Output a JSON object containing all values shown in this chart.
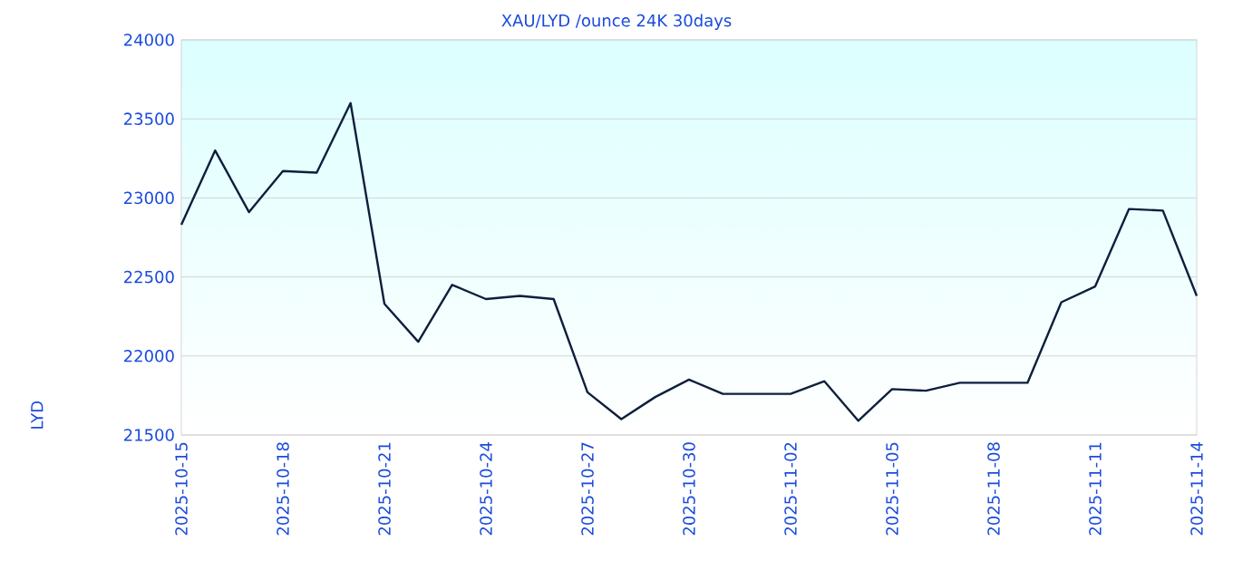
{
  "chart_data": {
    "type": "line",
    "title": "XAU/LYD /ounce 24K 30days",
    "ylabel": "LYD",
    "x": [
      "2025-10-15",
      "2025-10-16",
      "2025-10-17",
      "2025-10-18",
      "2025-10-19",
      "2025-10-20",
      "2025-10-21",
      "2025-10-22",
      "2025-10-23",
      "2025-10-24",
      "2025-10-25",
      "2025-10-26",
      "2025-10-27",
      "2025-10-28",
      "2025-10-29",
      "2025-10-30",
      "2025-10-31",
      "2025-11-01",
      "2025-11-02",
      "2025-11-03",
      "2025-11-04",
      "2025-11-05",
      "2025-11-06",
      "2025-11-07",
      "2025-11-08",
      "2025-11-09",
      "2025-11-10",
      "2025-11-11",
      "2025-11-12",
      "2025-11-13",
      "2025-11-14"
    ],
    "series": [
      {
        "color": "#0d1f3c",
        "values": [
          22830,
          23300,
          22910,
          23170,
          23160,
          23600,
          22330,
          22090,
          22450,
          22360,
          22380,
          22360,
          21770,
          21600,
          21740,
          21850,
          21760,
          21760,
          21760,
          21840,
          21590,
          21790,
          21780,
          21830,
          21830,
          21830,
          22340,
          22440,
          22930,
          22920,
          22380
        ]
      }
    ],
    "xlim": [
      "2025-10-15",
      "2025-11-14"
    ],
    "xticks": [
      "2025-10-15",
      "2025-10-18",
      "2025-10-21",
      "2025-10-24",
      "2025-10-27",
      "2025-10-30",
      "2025-11-02",
      "2025-11-05",
      "2025-11-08",
      "2025-11-11",
      "2025-11-14"
    ],
    "ylim": [
      21500,
      24000
    ],
    "yticks": [
      21500,
      22000,
      22500,
      23000,
      23500,
      24000
    ],
    "grid": "y",
    "marker": "none",
    "line_style": "solid"
  }
}
